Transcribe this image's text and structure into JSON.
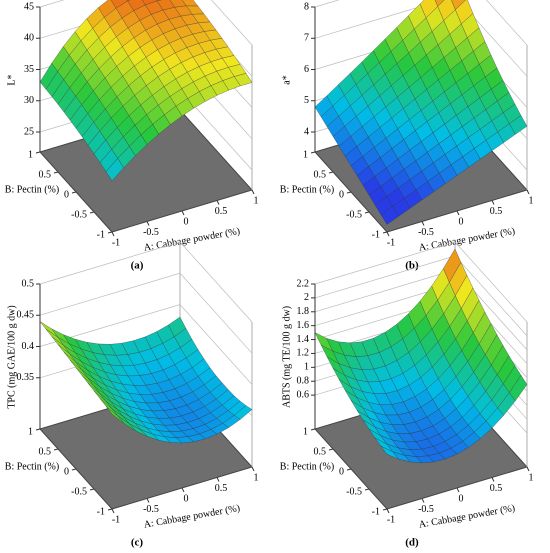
{
  "chart_data": [
    {
      "type": "surface",
      "caption": "(a)",
      "xlabel": "A: Cabbage powder (%)",
      "ylabel": "B: Pectin (%)",
      "zlabel": "L*",
      "x": [
        -1,
        0,
        1
      ],
      "y": [
        -1,
        0,
        1
      ],
      "z": [
        [
          30,
          37,
          39
        ],
        [
          32,
          40,
          41
        ],
        [
          33,
          43,
          42
        ]
      ],
      "xlim": [
        -1,
        1
      ],
      "ylim": [
        -1,
        1
      ],
      "zlim": [
        25,
        45
      ],
      "xticks": [
        -1,
        -0.5,
        0,
        0.5,
        1
      ],
      "yticks": [
        -1,
        -0.5,
        0,
        0.5,
        1
      ],
      "zticks": [
        25,
        30,
        35,
        40,
        45
      ]
    },
    {
      "type": "surface",
      "caption": "(b)",
      "xlabel": "A: Cabbage powder (%)",
      "ylabel": "B: Pectin (%)",
      "zlabel": "a*",
      "x": [
        -1,
        0,
        1
      ],
      "y": [
        -1,
        0,
        1
      ],
      "z": [
        [
          3.6,
          4.5,
          5.4
        ],
        [
          4.2,
          5.3,
          6.4
        ],
        [
          4.8,
          6.3,
          7.9
        ]
      ],
      "xlim": [
        -1,
        1
      ],
      "ylim": [
        -1,
        1
      ],
      "zlim": [
        4,
        8
      ],
      "xticks": [
        -1,
        -0.5,
        0,
        0.5,
        1
      ],
      "yticks": [
        -1,
        -0.5,
        0,
        0.5,
        1
      ],
      "zticks": [
        4,
        5,
        6,
        7,
        8
      ]
    },
    {
      "type": "surface",
      "caption": "(c)",
      "xlabel": "A: Cabbage powder (%)",
      "ylabel": "B: Pectin (%)",
      "zlabel": "TPC (mg GAE/100 g dw)",
      "x": [
        -1,
        0,
        1
      ],
      "y": [
        -1,
        0,
        1
      ],
      "z": [
        [
          0.42,
          0.34,
          0.36
        ],
        [
          0.43,
          0.34,
          0.35
        ],
        [
          0.44,
          0.37,
          0.38
        ]
      ],
      "xlim": [
        -1,
        1
      ],
      "ylim": [
        -1,
        1
      ],
      "zlim": [
        0.3,
        0.5
      ],
      "xticks": [
        -1,
        -0.5,
        0,
        0.5,
        1
      ],
      "yticks": [
        -1,
        -0.5,
        0,
        0.5,
        1
      ],
      "zticks": [
        0.35,
        0.4,
        0.45,
        0.5
      ]
    },
    {
      "type": "surface",
      "caption": "(d)",
      "xlabel": "A: Cabbage powder (%)",
      "ylabel": "B: Pectin (%)",
      "zlabel": "ABTS (mg TE/100 g dw)",
      "x": [
        -1,
        0,
        1
      ],
      "y": [
        -1,
        0,
        1
      ],
      "z": [
        [
          0.9,
          0.6,
          1.3
        ],
        [
          1.1,
          0.7,
          1.6
        ],
        [
          1.5,
          1.2,
          2.1
        ]
      ],
      "xlim": [
        -1,
        1
      ],
      "ylim": [
        -1,
        1
      ],
      "zlim": [
        0.4,
        2.2
      ],
      "xticks": [
        -1,
        -0.5,
        0,
        0.5,
        1
      ],
      "yticks": [
        -1,
        -0.5,
        0,
        0.5,
        1
      ],
      "zticks": [
        0.6,
        0.8,
        1,
        1.2,
        1.4,
        1.6,
        1.8,
        2,
        2.2
      ]
    }
  ]
}
